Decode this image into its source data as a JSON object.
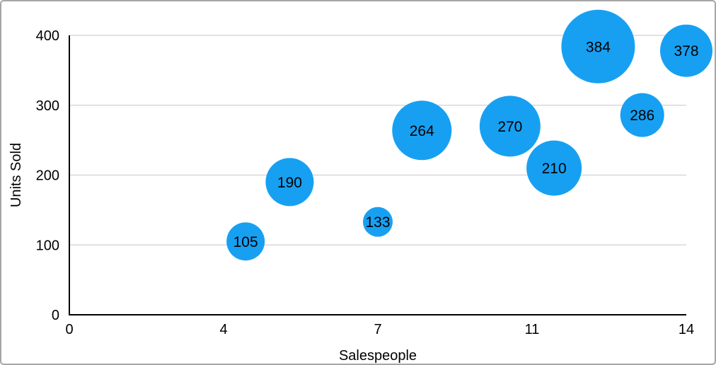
{
  "chart_data": {
    "type": "scatter",
    "variant": "bubble",
    "title": "",
    "xlabel": "Salespeople",
    "ylabel": "Units Sold",
    "xlim": [
      0,
      14
    ],
    "ylim": [
      0,
      400
    ],
    "grid": "horizontal-only",
    "legend": "none",
    "x_ticks": [
      {
        "label": "0",
        "value": 0
      },
      {
        "label": "4",
        "value": 3.5
      },
      {
        "label": "7",
        "value": 7
      },
      {
        "label": "11",
        "value": 10.5
      },
      {
        "label": "14",
        "value": 14
      }
    ],
    "y_ticks": [
      {
        "label": "0",
        "value": 0
      },
      {
        "label": "100",
        "value": 100
      },
      {
        "label": "200",
        "value": 200
      },
      {
        "label": "300",
        "value": 300
      },
      {
        "label": "400",
        "value": 400
      }
    ],
    "points": [
      {
        "x": 4,
        "y": 105,
        "label": "105",
        "radius_px": 27
      },
      {
        "x": 5,
        "y": 190,
        "label": "190",
        "radius_px": 34
      },
      {
        "x": 7,
        "y": 133,
        "label": "133",
        "radius_px": 21
      },
      {
        "x": 8,
        "y": 264,
        "label": "264",
        "radius_px": 42
      },
      {
        "x": 10,
        "y": 270,
        "label": "270",
        "radius_px": 43
      },
      {
        "x": 11,
        "y": 210,
        "label": "210",
        "radius_px": 39
      },
      {
        "x": 12,
        "y": 384,
        "label": "384",
        "radius_px": 52
      },
      {
        "x": 13,
        "y": 286,
        "label": "286",
        "radius_px": 31
      },
      {
        "x": 14,
        "y": 378,
        "label": "378",
        "radius_px": 37
      }
    ],
    "colors": {
      "bubble": "#17A0F2",
      "bubble_label": "#000000",
      "axis_line": "#000000",
      "gridline": "#d8d8d8",
      "tick_text": "#000000",
      "frame_border": "#a6a6a6",
      "background": "#ffffff"
    }
  }
}
